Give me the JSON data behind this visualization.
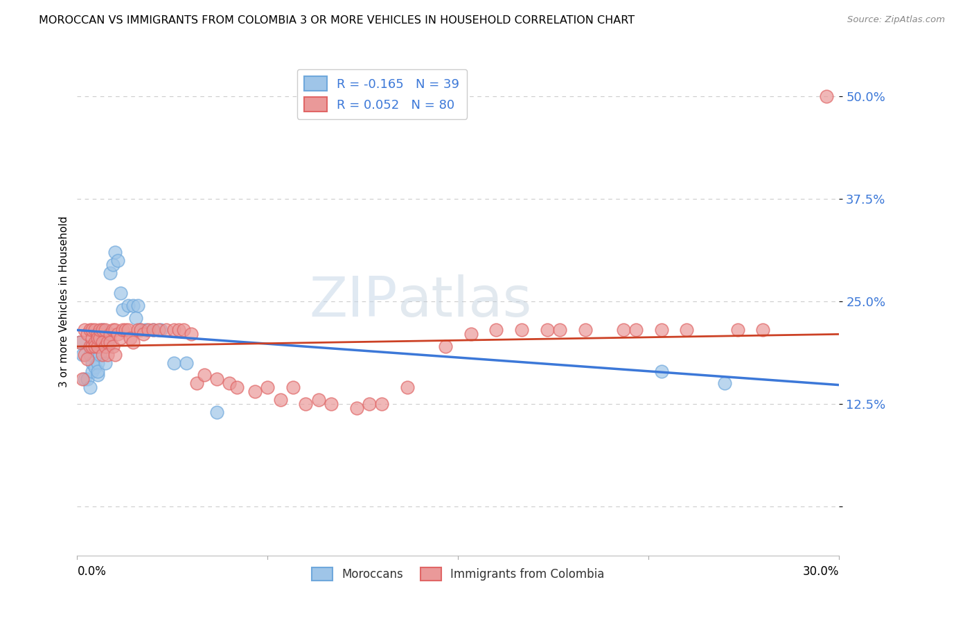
{
  "title": "MOROCCAN VS IMMIGRANTS FROM COLOMBIA 3 OR MORE VEHICLES IN HOUSEHOLD CORRELATION CHART",
  "source": "Source: ZipAtlas.com",
  "ylabel": "3 or more Vehicles in Household",
  "xmin": 0.0,
  "xmax": 0.3,
  "ymin": -0.06,
  "ymax": 0.56,
  "ytick_vals": [
    0.0,
    0.125,
    0.25,
    0.375,
    0.5
  ],
  "ytick_labels": [
    "",
    "12.5%",
    "25.0%",
    "37.5%",
    "50.0%"
  ],
  "legend_blue_r": "R = -0.165",
  "legend_blue_n": "N = 39",
  "legend_pink_r": "R = 0.052",
  "legend_pink_n": "N = 80",
  "blue_color": "#9fc5e8",
  "pink_color": "#ea9999",
  "blue_edge_color": "#6fa8dc",
  "pink_edge_color": "#e06666",
  "blue_line_color": "#3c78d8",
  "pink_line_color": "#cc4125",
  "legend_label_blue": "Moroccans",
  "legend_label_pink": "Immigrants from Colombia",
  "watermark_zip": "ZIP",
  "watermark_atlas": "atlas",
  "moroccan_x": [
    0.001,
    0.002,
    0.003,
    0.004,
    0.005,
    0.005,
    0.006,
    0.006,
    0.007,
    0.007,
    0.008,
    0.008,
    0.008,
    0.009,
    0.009,
    0.01,
    0.011,
    0.011,
    0.012,
    0.012,
    0.013,
    0.014,
    0.015,
    0.016,
    0.017,
    0.018,
    0.02,
    0.022,
    0.023,
    0.024,
    0.025,
    0.027,
    0.03,
    0.033,
    0.038,
    0.043,
    0.055,
    0.23,
    0.255
  ],
  "moroccan_y": [
    0.2,
    0.185,
    0.155,
    0.155,
    0.185,
    0.145,
    0.165,
    0.175,
    0.19,
    0.17,
    0.175,
    0.16,
    0.165,
    0.195,
    0.185,
    0.215,
    0.21,
    0.175,
    0.195,
    0.2,
    0.285,
    0.295,
    0.31,
    0.3,
    0.26,
    0.24,
    0.245,
    0.245,
    0.23,
    0.245,
    0.215,
    0.215,
    0.215,
    0.215,
    0.175,
    0.175,
    0.115,
    0.165,
    0.15
  ],
  "colombia_x": [
    0.001,
    0.002,
    0.003,
    0.003,
    0.004,
    0.004,
    0.005,
    0.005,
    0.006,
    0.006,
    0.006,
    0.007,
    0.007,
    0.007,
    0.008,
    0.008,
    0.008,
    0.009,
    0.009,
    0.01,
    0.01,
    0.01,
    0.011,
    0.011,
    0.012,
    0.012,
    0.013,
    0.013,
    0.014,
    0.014,
    0.015,
    0.015,
    0.016,
    0.017,
    0.018,
    0.019,
    0.02,
    0.021,
    0.022,
    0.024,
    0.025,
    0.026,
    0.028,
    0.03,
    0.032,
    0.035,
    0.038,
    0.04,
    0.042,
    0.045,
    0.047,
    0.05,
    0.055,
    0.06,
    0.063,
    0.07,
    0.075,
    0.08,
    0.085,
    0.09,
    0.095,
    0.1,
    0.11,
    0.115,
    0.12,
    0.13,
    0.145,
    0.155,
    0.165,
    0.175,
    0.185,
    0.19,
    0.2,
    0.215,
    0.22,
    0.23,
    0.24,
    0.26,
    0.27,
    0.295
  ],
  "colombia_y": [
    0.2,
    0.155,
    0.185,
    0.215,
    0.21,
    0.18,
    0.195,
    0.215,
    0.205,
    0.215,
    0.195,
    0.2,
    0.215,
    0.195,
    0.195,
    0.21,
    0.205,
    0.205,
    0.215,
    0.215,
    0.2,
    0.185,
    0.215,
    0.195,
    0.2,
    0.185,
    0.21,
    0.2,
    0.215,
    0.195,
    0.215,
    0.185,
    0.21,
    0.205,
    0.215,
    0.215,
    0.215,
    0.205,
    0.2,
    0.215,
    0.215,
    0.21,
    0.215,
    0.215,
    0.215,
    0.215,
    0.215,
    0.215,
    0.215,
    0.21,
    0.15,
    0.16,
    0.155,
    0.15,
    0.145,
    0.14,
    0.145,
    0.13,
    0.145,
    0.125,
    0.13,
    0.125,
    0.12,
    0.125,
    0.125,
    0.145,
    0.195,
    0.21,
    0.215,
    0.215,
    0.215,
    0.215,
    0.215,
    0.215,
    0.215,
    0.215,
    0.215,
    0.215,
    0.215,
    0.5
  ],
  "blue_trend_x0": 0.0,
  "blue_trend_y0": 0.215,
  "blue_trend_x1": 0.3,
  "blue_trend_y1": 0.148,
  "pink_trend_x0": 0.0,
  "pink_trend_y0": 0.195,
  "pink_trend_x1": 0.3,
  "pink_trend_y1": 0.21
}
